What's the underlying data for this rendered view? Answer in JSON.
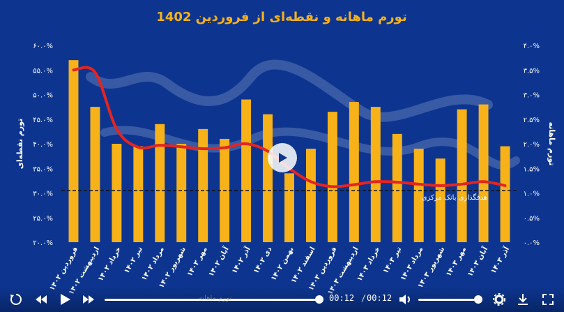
{
  "chart_data": {
    "type": "bar",
    "title": "تورم ماهانه و نقطه‌ای از فروردین 1402",
    "categories": [
      "فروردین ۱۴۰۲",
      "اردیبهشت ۱۴۰۲",
      "خرداد ۱۴۰۲",
      "تیر ۱۴۰۲",
      "مرداد ۱۴۰۲",
      "شهریور ۱۴۰۲",
      "مهر ۱۴۰۲",
      "آبان ۱۴۰۲",
      "آذر ۱۴۰۲",
      "دی ۱۴۰۲",
      "بهمن ۱۴۰۲",
      "اسفند ۱۴۰۲",
      "فروردین ۱۴۰۳",
      "اردیبهشت ۱۴۰۳",
      "خرداد ۱۴۰۳",
      "تیر ۱۴۰۳",
      "مرداد ۱۴۰۳",
      "شهریور ۱۴۰۳",
      "مهر ۱۴۰۳",
      "آبان ۱۴۰۳",
      "آذر ۱۴۰۳"
    ],
    "series": [
      {
        "name": "تورم ماهانه",
        "axis": "right",
        "type": "bar",
        "color": "#f7b21a",
        "values": [
          3.7,
          2.75,
          2.0,
          1.95,
          2.4,
          2.0,
          2.3,
          2.1,
          2.9,
          2.6,
          1.4,
          1.9,
          2.65,
          2.85,
          2.75,
          2.2,
          1.9,
          1.7,
          2.7,
          2.8,
          1.95
        ]
      },
      {
        "name": "تورم نقطه‌ای",
        "axis": "left",
        "type": "line",
        "color": "#e52420",
        "values": [
          55.0,
          54.5,
          43.0,
          39.3,
          39.7,
          39.4,
          39.0,
          39.2,
          40.0,
          38.5,
          35.0,
          32.3,
          31.3,
          31.7,
          32.3,
          32.2,
          31.8,
          31.5,
          31.8,
          32.3,
          31.5
        ]
      }
    ],
    "y_left": {
      "label": "تورم نقطه‌ای",
      "ticks": [
        "۲۰.۰%",
        "۲۵.۰%",
        "۳۰.۰%",
        "۳۵.۰%",
        "۴۰.۰%",
        "۴۵.۰%",
        "۵۰.۰%",
        "۵۵.۰%",
        "۶۰.۰%"
      ],
      "ylim": [
        20,
        60
      ]
    },
    "y_right": {
      "label": "تورم ماهانه",
      "ticks": [
        "۰.۰%",
        "۰.۵%",
        "۱.۰%",
        "۱.۵%",
        "۲.۰%",
        "۲.۵%",
        "۳.۰%",
        "۳.۵%",
        "۴.۰%"
      ],
      "ylim": [
        0,
        4
      ]
    },
    "reference_line": {
      "label": "هدفگذاری بانک مرکزی",
      "value_right_axis": 1.05,
      "style": "dashed",
      "color": "#111111"
    },
    "grid": false,
    "colors": {
      "background": "#0d3590",
      "title": "#f7b21a",
      "axis_text": "#ffffff"
    }
  },
  "player": {
    "current_time": "00:12",
    "duration": "00:12",
    "progress": 1.0,
    "volume": 1.0,
    "legend_ghost": "تورم ماهانه",
    "icons": [
      "replay-icon",
      "rewind-icon",
      "play-icon",
      "forward-icon",
      "volume-icon",
      "settings-icon",
      "download-icon",
      "fullscreen-icon"
    ]
  }
}
